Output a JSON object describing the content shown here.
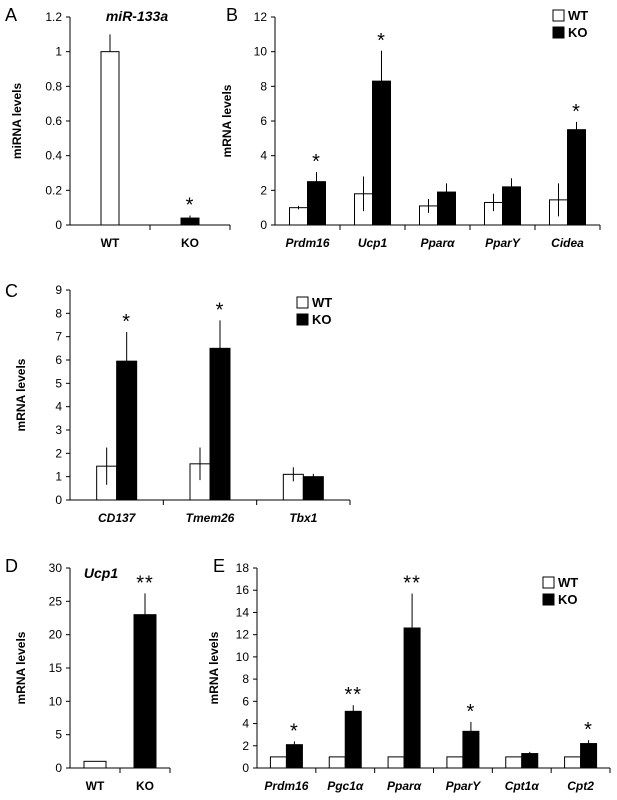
{
  "chart_data": [
    {
      "panel": "A",
      "type": "bar",
      "title": "miR-133a",
      "ylabel": "miRNA levels",
      "ylim": [
        0,
        1.2
      ],
      "yticks": [
        "0",
        "0.2",
        "0.4",
        "0.6",
        "0.8",
        "1",
        "1.2"
      ],
      "categories": [
        "WT",
        "KO"
      ],
      "italic_categories": false,
      "series": [
        {
          "values": [
            1.0,
            0.04
          ],
          "errors": [
            0.1,
            0.015
          ]
        }
      ],
      "single_series_colors": [
        "#ffffff",
        "#000000"
      ],
      "significance": [
        "",
        "*"
      ],
      "legend": []
    },
    {
      "panel": "B",
      "type": "bar",
      "ylabel": "mRNA levels",
      "ylim": [
        0,
        12
      ],
      "yticks": [
        "0",
        "2",
        "4",
        "6",
        "8",
        "10",
        "12"
      ],
      "categories": [
        "Prdm16",
        "Ucp1",
        "Pparα",
        "PparΥ",
        "Cidea"
      ],
      "italic_categories": true,
      "series": [
        {
          "name": "WT",
          "values": [
            1.0,
            1.8,
            1.1,
            1.3,
            1.45
          ],
          "errors": [
            0.1,
            1.0,
            0.4,
            0.5,
            0.95
          ]
        },
        {
          "name": "KO",
          "values": [
            2.5,
            8.3,
            1.9,
            2.2,
            5.5
          ],
          "errors": [
            0.55,
            1.75,
            0.5,
            0.5,
            0.45
          ]
        }
      ],
      "significance": [
        "*",
        "*",
        "",
        "",
        "*"
      ],
      "legend": [
        "WT",
        "KO"
      ]
    },
    {
      "panel": "C",
      "type": "bar",
      "ylabel": "mRNA levels",
      "ylim": [
        0,
        9
      ],
      "yticks": [
        "0",
        "1",
        "2",
        "3",
        "4",
        "5",
        "6",
        "7",
        "8",
        "9"
      ],
      "categories": [
        "CD137",
        "Tmem26",
        "Tbx1"
      ],
      "italic_categories": true,
      "series": [
        {
          "name": "WT",
          "values": [
            1.45,
            1.55,
            1.1
          ],
          "errors": [
            0.8,
            0.7,
            0.3
          ]
        },
        {
          "name": "KO",
          "values": [
            5.95,
            6.5,
            1.0
          ],
          "errors": [
            1.25,
            1.2,
            0.12
          ]
        }
      ],
      "significance": [
        "*",
        "*",
        ""
      ],
      "legend": [
        "WT",
        "KO"
      ]
    },
    {
      "panel": "D",
      "type": "bar",
      "title": "Ucp1",
      "ylabel": "mRNA levels",
      "ylim": [
        0,
        30
      ],
      "yticks": [
        "0",
        "5",
        "10",
        "15",
        "20",
        "25",
        "30"
      ],
      "categories": [
        "WT",
        "KO"
      ],
      "italic_categories": false,
      "series": [
        {
          "values": [
            1.0,
            23.0
          ],
          "errors": [
            0,
            3.2
          ]
        }
      ],
      "single_series_colors": [
        "#ffffff",
        "#000000"
      ],
      "significance": [
        "",
        "**"
      ],
      "legend": []
    },
    {
      "panel": "E",
      "type": "bar",
      "ylabel": "mRNA levels",
      "ylim": [
        0,
        18
      ],
      "yticks": [
        "0",
        "2",
        "4",
        "6",
        "8",
        "10",
        "12",
        "14",
        "16",
        "18"
      ],
      "categories": [
        "Prdm16",
        "Pgc1α",
        "Pparα",
        "PparΥ",
        "Cpt1α",
        "Cpt2"
      ],
      "italic_categories": true,
      "series": [
        {
          "name": "WT",
          "values": [
            1.0,
            1.0,
            1.0,
            1.0,
            1.0,
            1.0
          ],
          "errors": [
            0,
            0,
            0,
            0,
            0,
            0
          ]
        },
        {
          "name": "KO",
          "values": [
            2.1,
            5.1,
            12.6,
            3.3,
            1.3,
            2.2
          ],
          "errors": [
            0.3,
            0.55,
            3.1,
            0.85,
            0.15,
            0.3
          ]
        }
      ],
      "significance": [
        "*",
        "**",
        "**",
        "*",
        "",
        "*"
      ],
      "legend": [
        "WT",
        "KO"
      ]
    }
  ]
}
